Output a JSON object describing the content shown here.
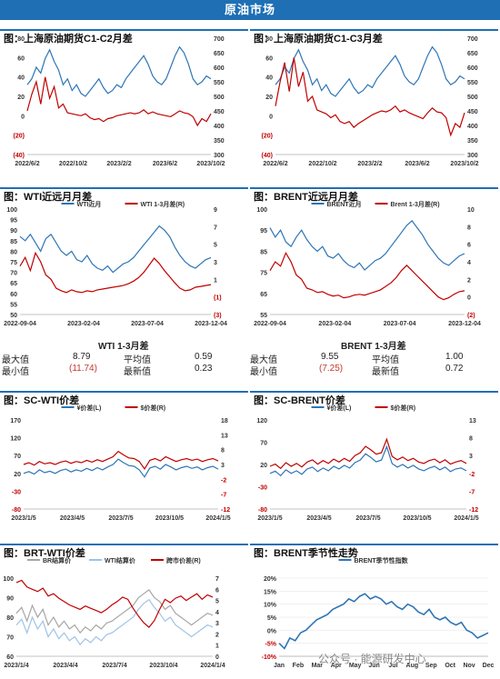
{
  "page_title": "原油市场",
  "watermark": "公众号 · 能源研发中心",
  "stats": {
    "wti": {
      "title": "WTI 1-3月差",
      "max_label": "最大值",
      "max": "8.79",
      "min_label": "最小值",
      "min": "(11.74)",
      "avg_label": "平均值",
      "avg": "0.59",
      "latest_label": "最新值",
      "latest": "0.23"
    },
    "brent": {
      "title": "BRENT 1-3月差",
      "max_label": "最大值",
      "max": "9.55",
      "min_label": "最小值",
      "min": "(7.25)",
      "avg_label": "平均值",
      "avg": "1.00",
      "latest_label": "最新值",
      "latest": "0.72"
    }
  },
  "colors": {
    "blue": "#2e75b6",
    "red": "#c00000",
    "grey": "#a6a6a6",
    "lightblue": "#9dc3e6",
    "banner": "#1f6fb4"
  },
  "chart_data": [
    {
      "id": "c1",
      "type": "line",
      "title": "图：上海原油期货C1-C2月差",
      "x_ticks": [
        "2022/6/2",
        "2022/10/2",
        "2023/2/2",
        "2023/6/2",
        "2023/10/2"
      ],
      "left_ticks": [
        "80",
        "60",
        "40",
        "20",
        "0",
        "(20)",
        "(40)"
      ],
      "left_range": [
        -40,
        80
      ],
      "right_ticks": [
        "700",
        "650",
        "600",
        "550",
        "500",
        "450",
        "400",
        "350",
        "300"
      ],
      "right_range": [
        300,
        700
      ],
      "series": [
        {
          "axis": "right",
          "color": "blue",
          "values": [
            540,
            560,
            600,
            580,
            630,
            660,
            620,
            590,
            540,
            560,
            520,
            540,
            510,
            500,
            520,
            540,
            560,
            530,
            510,
            520,
            540,
            530,
            560,
            580,
            600,
            620,
            640,
            610,
            570,
            550,
            540,
            560,
            600,
            640,
            670,
            650,
            610,
            560,
            540,
            550,
            570,
            560
          ]
        },
        {
          "axis": "left",
          "color": "red",
          "values": [
            5,
            22,
            35,
            12,
            40,
            18,
            30,
            8,
            12,
            3,
            2,
            1,
            0,
            2,
            -2,
            -4,
            -3,
            -6,
            -3,
            -2,
            0,
            1,
            2,
            3,
            2,
            3,
            6,
            2,
            4,
            2,
            1,
            0,
            -1,
            2,
            5,
            3,
            2,
            -1,
            -10,
            -3,
            -6,
            2
          ]
        }
      ]
    },
    {
      "id": "c2",
      "type": "line",
      "title": "图：上海原油期货C1-C3月差",
      "x_ticks": [
        "2022/6/2",
        "2022/10/2",
        "2023/2/2",
        "2023/6/2",
        "2023/10/2"
      ],
      "left_ticks": [
        "80",
        "60",
        "40",
        "20",
        "0",
        "(20)",
        "(40)"
      ],
      "left_range": [
        -40,
        80
      ],
      "right_ticks": [
        "700",
        "650",
        "600",
        "550",
        "500",
        "450",
        "400",
        "350",
        "300"
      ],
      "right_range": [
        300,
        700
      ],
      "series": [
        {
          "axis": "right",
          "color": "blue",
          "values": [
            540,
            560,
            600,
            580,
            630,
            660,
            620,
            590,
            540,
            560,
            520,
            540,
            510,
            500,
            520,
            540,
            560,
            530,
            510,
            520,
            540,
            530,
            560,
            580,
            600,
            620,
            640,
            610,
            570,
            550,
            540,
            560,
            600,
            640,
            670,
            650,
            610,
            560,
            540,
            550,
            570,
            560
          ]
        },
        {
          "axis": "left",
          "color": "red",
          "values": [
            10,
            35,
            55,
            25,
            60,
            30,
            45,
            15,
            20,
            6,
            4,
            2,
            -2,
            1,
            -6,
            -8,
            -6,
            -12,
            -8,
            -5,
            -2,
            1,
            3,
            5,
            4,
            6,
            10,
            4,
            6,
            3,
            1,
            -1,
            -3,
            3,
            8,
            4,
            3,
            -2,
            -20,
            -8,
            -12,
            3
          ]
        }
      ]
    },
    {
      "id": "c3",
      "type": "line",
      "title": "图：WTI近远月月差",
      "legend": [
        "WTI近月",
        "WTI 1-3月差(R)"
      ],
      "x_ticks": [
        "2022-09-04",
        "2023-02-04",
        "2023-07-04",
        "2023-12-04"
      ],
      "left_ticks": [
        "100",
        "95",
        "90",
        "85",
        "80",
        "75",
        "70",
        "65",
        "60",
        "55",
        "50"
      ],
      "left_range": [
        50,
        100
      ],
      "right_ticks": [
        "9",
        "7",
        "5",
        "3",
        "1",
        "(1)",
        "(3)"
      ],
      "right_range": [
        -3,
        9
      ],
      "series": [
        {
          "name": "WTI近月",
          "axis": "left",
          "color": "blue",
          "values": [
            87,
            85,
            88,
            84,
            80,
            86,
            88,
            84,
            80,
            78,
            80,
            76,
            75,
            78,
            74,
            72,
            71,
            73,
            70,
            72,
            74,
            75,
            77,
            80,
            83,
            86,
            89,
            92,
            90,
            87,
            82,
            78,
            75,
            73,
            72,
            74,
            76,
            77
          ]
        },
        {
          "name": "WTI 1-3月差(R)",
          "axis": "right",
          "color": "red",
          "values": [
            2.5,
            3.5,
            2,
            4,
            3,
            1.5,
            1,
            0,
            -0.3,
            -0.5,
            -0.2,
            -0.4,
            -0.5,
            -0.3,
            -0.4,
            -0.2,
            -0.1,
            0,
            0.1,
            0.2,
            0.3,
            0.5,
            0.8,
            1.2,
            1.8,
            2.6,
            3.4,
            2.8,
            2,
            1.3,
            0.6,
            0,
            -0.3,
            -0.2,
            0.1,
            0.2,
            0.3,
            0.4
          ]
        }
      ]
    },
    {
      "id": "c4",
      "type": "line",
      "title": "图：BRENT近远月月差",
      "legend": [
        "BRENT近月",
        "Brent 1-3月差(R)"
      ],
      "x_ticks": [
        "2022-09-04",
        "2023-02-04",
        "2023-07-04",
        "2023-12-04"
      ],
      "left_ticks": [
        "100",
        "95",
        "85",
        "75",
        "65",
        "55"
      ],
      "left_range": [
        55,
        100
      ],
      "right_ticks": [
        "10",
        "8",
        "6",
        "4",
        "2",
        "0",
        "(2)"
      ],
      "right_range": [
        -2,
        10
      ],
      "series": [
        {
          "name": "BRENT近月",
          "axis": "left",
          "color": "blue",
          "values": [
            92,
            88,
            91,
            86,
            84,
            88,
            91,
            87,
            84,
            82,
            84,
            80,
            79,
            81,
            78,
            76,
            75,
            77,
            74,
            76,
            78,
            79,
            81,
            84,
            87,
            90,
            93,
            95,
            92,
            89,
            85,
            82,
            79,
            77,
            76,
            78,
            80,
            81
          ]
        },
        {
          "name": "Brent 1-3月差(R)",
          "axis": "right",
          "color": "red",
          "values": [
            3,
            4,
            3.5,
            5,
            4,
            2.5,
            2,
            1,
            0.8,
            0.5,
            0.6,
            0.3,
            0.1,
            0.2,
            -0.1,
            0,
            0.2,
            0.3,
            0.2,
            0.4,
            0.6,
            0.8,
            1.2,
            1.6,
            2.2,
            3,
            3.6,
            3,
            2.4,
            1.8,
            1.2,
            0.6,
            0,
            -0.3,
            -0.1,
            0.3,
            0.6,
            0.7
          ]
        }
      ]
    },
    {
      "id": "c5",
      "type": "line",
      "title": "图：SC-WTI价差",
      "legend": [
        "¥价差(L)",
        "$价差(R)"
      ],
      "x_ticks": [
        "2023/1/5",
        "2023/4/5",
        "2023/7/5",
        "2023/10/5",
        "2024/1/5"
      ],
      "left_ticks": [
        "170",
        "120",
        "70",
        "20",
        "-30",
        "-80"
      ],
      "left_range": [
        -80,
        170
      ],
      "right_ticks": [
        "18",
        "13",
        "8",
        "3",
        "-2",
        "-7",
        "-12"
      ],
      "right_range": [
        -12,
        18
      ],
      "series": [
        {
          "name": "¥价差(L)",
          "axis": "left",
          "color": "blue",
          "values": [
            20,
            25,
            18,
            30,
            22,
            26,
            20,
            28,
            32,
            24,
            30,
            26,
            34,
            28,
            36,
            30,
            38,
            45,
            60,
            50,
            42,
            40,
            30,
            10,
            35,
            40,
            32,
            45,
            38,
            30,
            36,
            40,
            34,
            38,
            30,
            36,
            40,
            32
          ]
        },
        {
          "name": "$价差(R)",
          "axis": "right",
          "color": "red",
          "values": [
            3,
            3.6,
            2.8,
            4,
            3.2,
            3.6,
            3,
            3.8,
            4.2,
            3.4,
            4,
            3.6,
            4.4,
            3.8,
            4.6,
            4,
            4.8,
            5.6,
            7.4,
            6.2,
            5.2,
            5,
            4,
            1.5,
            4.4,
            5,
            4.2,
            5.6,
            4.8,
            4,
            4.6,
            5,
            4.4,
            4.8,
            4,
            4.6,
            5,
            4.2
          ]
        }
      ]
    },
    {
      "id": "c6",
      "type": "line",
      "title": "图：SC-BRENT价差",
      "legend": [
        "¥价差(L)",
        "$价差(R)"
      ],
      "x_ticks": [
        "2023/1/5",
        "2023/4/5",
        "2023/7/5",
        "2023/10/5",
        "2024/1/5"
      ],
      "left_ticks": [
        "120",
        "70",
        "20",
        "-30",
        "-80"
      ],
      "left_range": [
        -80,
        120
      ],
      "right_ticks": [
        "13",
        "8",
        "3",
        "-2",
        "-7",
        "-12"
      ],
      "right_range": [
        -12,
        13
      ],
      "series": [
        {
          "name": "¥价差(L)",
          "axis": "left",
          "color": "blue",
          "values": [
            0,
            5,
            -5,
            8,
            0,
            6,
            -2,
            10,
            14,
            4,
            12,
            6,
            16,
            10,
            18,
            12,
            24,
            30,
            44,
            36,
            26,
            30,
            60,
            22,
            14,
            20,
            12,
            18,
            10,
            6,
            12,
            16,
            8,
            14,
            4,
            10,
            12,
            6
          ]
        },
        {
          "name": "$价差(R)",
          "axis": "right",
          "color": "red",
          "values": [
            0,
            0.6,
            -0.6,
            1,
            0,
            0.8,
            -0.2,
            1.2,
            1.8,
            0.6,
            1.6,
            0.8,
            2,
            1.2,
            2.2,
            1.4,
            3,
            3.8,
            5.6,
            4.6,
            3.4,
            3.8,
            7.6,
            2.8,
            1.8,
            2.6,
            1.6,
            2.2,
            1.2,
            0.8,
            1.6,
            2,
            1,
            1.8,
            0.6,
            1.2,
            1.6,
            0.8
          ]
        }
      ]
    },
    {
      "id": "c7",
      "type": "line",
      "title": "图：BRT-WTI价差",
      "legend": [
        "BR结算价",
        "WTI结算价",
        "跨市价差(R)"
      ],
      "x_ticks": [
        "2023/1/4",
        "2023/4/4",
        "2023/7/4",
        "2023/10/4",
        "2024/1/4"
      ],
      "left_ticks": [
        "100",
        "90",
        "80",
        "70",
        "60"
      ],
      "left_range": [
        60,
        100
      ],
      "right_ticks": [
        "7",
        "6",
        "5",
        "4",
        "3",
        "2",
        "1",
        "0"
      ],
      "right_range": [
        0,
        7
      ],
      "series": [
        {
          "name": "BR结算价",
          "axis": "left",
          "color": "grey",
          "values": [
            82,
            85,
            78,
            86,
            80,
            84,
            76,
            80,
            75,
            78,
            74,
            76,
            72,
            75,
            73,
            76,
            74,
            77,
            78,
            80,
            82,
            84,
            86,
            90,
            92,
            94,
            90,
            88,
            84,
            86,
            82,
            80,
            78,
            76,
            78,
            80,
            82,
            81
          ]
        },
        {
          "name": "WTI结算价",
          "axis": "left",
          "color": "lightblue",
          "values": [
            76,
            79,
            72,
            80,
            74,
            78,
            70,
            74,
            69,
            72,
            68,
            70,
            66,
            69,
            67,
            70,
            68,
            71,
            72,
            74,
            76,
            78,
            80,
            84,
            87,
            89,
            85,
            82,
            78,
            80,
            76,
            74,
            72,
            70,
            72,
            74,
            76,
            75
          ]
        },
        {
          "name": "跨市价差(R)",
          "axis": "right",
          "color": "red",
          "values": [
            6.6,
            6.8,
            6.2,
            6,
            5.8,
            6.1,
            5.4,
            5.6,
            5.2,
            4.9,
            4.6,
            4.4,
            4.2,
            4.5,
            4.3,
            4.1,
            3.9,
            4.2,
            4.6,
            4.9,
            5.3,
            5.1,
            4.3,
            3.6,
            3,
            2.6,
            3.2,
            4.2,
            5.1,
            4.8,
            5.2,
            5.4,
            5,
            5.3,
            5.6,
            5.1,
            5.5,
            5.3
          ]
        }
      ]
    },
    {
      "id": "c8",
      "type": "line",
      "title": "图：BRENT季节性走势",
      "legend": [
        "BRENT季节性指数"
      ],
      "x_ticks": [
        "Jan",
        "Feb",
        "Mar",
        "Apr",
        "May",
        "Jun",
        "Jul",
        "Aug",
        "Sep",
        "Oct",
        "Nov",
        "Dec"
      ],
      "left_ticks": [
        "20%",
        "15%",
        "10%",
        "5%",
        "0%",
        "-5%",
        "-10%"
      ],
      "left_range": [
        -10,
        20
      ],
      "series": [
        {
          "name": "BRENT季节性指数",
          "axis": "left",
          "color": "blue",
          "values": [
            -5,
            -7,
            -3,
            -4,
            -1,
            0,
            2,
            4,
            5,
            6,
            8,
            9,
            10,
            12,
            11,
            13,
            14,
            12,
            13,
            12,
            10,
            11,
            9,
            8,
            10,
            9,
            7,
            6,
            8,
            5,
            4,
            5,
            3,
            2,
            3,
            0,
            -1,
            -3,
            -2,
            -1
          ]
        }
      ]
    }
  ]
}
